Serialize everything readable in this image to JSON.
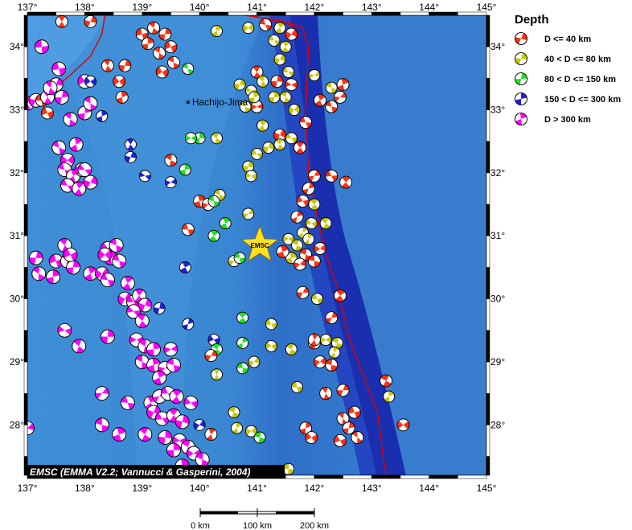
{
  "map": {
    "lon_range": [
      137,
      145
    ],
    "lat_range": [
      27.2,
      34.5
    ],
    "lon_ticks": [
      137,
      138,
      139,
      140,
      141,
      142,
      143,
      144,
      145
    ],
    "lat_ticks": [
      28,
      29,
      30,
      31,
      32,
      33,
      34
    ],
    "lon_labels": [
      "137°",
      "138°",
      "139°",
      "140°",
      "141°",
      "142°",
      "143°",
      "144°",
      "145°"
    ],
    "lat_labels": [
      "28°",
      "29°",
      "30°",
      "31°",
      "32°",
      "33°",
      "34°"
    ],
    "place_label": "Hachijo-Jima",
    "place_lon": 139.8,
    "place_lat": 33.12,
    "epicenter_label": "EMSC",
    "epicenter_lon": 141.05,
    "epicenter_lat": 30.85,
    "credit": "EMSC (EMMA V2.2; Vannucci & Gasperini, 2004)",
    "ocean_color": "#3a8fd8",
    "trench_color": "#1030b0",
    "plate_boundary_color": "#e00000"
  },
  "legend": {
    "title": "Depth",
    "items": [
      {
        "label": "D <= 40 km",
        "color": "#ff3010"
      },
      {
        "label": "40 < D <= 80 km",
        "color": "#c8c800"
      },
      {
        "label": "80 < D <= 150 km",
        "color": "#20e020"
      },
      {
        "label": "150 < D <= 300 km",
        "color": "#2020e0"
      },
      {
        "label": "D > 300 km",
        "color": "#ff00ff"
      }
    ]
  },
  "scale_bar": {
    "labels": [
      "0 km",
      "100 km",
      "200 km"
    ]
  },
  "events": [
    {
      "lon": 137.6,
      "lat": 34.4,
      "d": 0
    },
    {
      "lon": 138.1,
      "lat": 34.4,
      "d": 0
    },
    {
      "lon": 137.25,
      "lat": 34.0,
      "d": 4
    },
    {
      "lon": 138.4,
      "lat": 33.7,
      "d": 0
    },
    {
      "lon": 138.7,
      "lat": 33.7,
      "d": 0
    },
    {
      "lon": 139.0,
      "lat": 34.2,
      "d": 0
    },
    {
      "lon": 139.2,
      "lat": 34.3,
      "d": 0
    },
    {
      "lon": 139.4,
      "lat": 34.2,
      "d": 0
    },
    {
      "lon": 139.5,
      "lat": 34.0,
      "d": 0
    },
    {
      "lon": 139.3,
      "lat": 33.9,
      "d": 0
    },
    {
      "lon": 139.1,
      "lat": 34.05,
      "d": 0
    },
    {
      "lon": 139.35,
      "lat": 33.6,
      "d": 0
    },
    {
      "lon": 139.55,
      "lat": 33.75,
      "d": 0
    },
    {
      "lon": 138.65,
      "lat": 33.2,
      "d": 0
    },
    {
      "lon": 138.6,
      "lat": 33.45,
      "d": 0
    },
    {
      "lon": 139.8,
      "lat": 33.65,
      "d": 2
    },
    {
      "lon": 140.3,
      "lat": 34.25,
      "d": 1
    },
    {
      "lon": 140.85,
      "lat": 34.3,
      "d": 1
    },
    {
      "lon": 141.15,
      "lat": 34.35,
      "d": 0
    },
    {
      "lon": 141.4,
      "lat": 34.3,
      "d": 1
    },
    {
      "lon": 141.6,
      "lat": 34.2,
      "d": 0
    },
    {
      "lon": 141.3,
      "lat": 34.1,
      "d": 1
    },
    {
      "lon": 141.5,
      "lat": 34.0,
      "d": 1
    },
    {
      "lon": 141.4,
      "lat": 33.8,
      "d": 1
    },
    {
      "lon": 141.55,
      "lat": 33.6,
      "d": 1
    },
    {
      "lon": 141.0,
      "lat": 33.6,
      "d": 0
    },
    {
      "lon": 140.7,
      "lat": 33.4,
      "d": 1
    },
    {
      "lon": 140.9,
      "lat": 33.3,
      "d": 1
    },
    {
      "lon": 141.1,
      "lat": 33.45,
      "d": 1
    },
    {
      "lon": 141.35,
      "lat": 33.45,
      "d": 0
    },
    {
      "lon": 141.6,
      "lat": 33.4,
      "d": 0
    },
    {
      "lon": 141.5,
      "lat": 33.2,
      "d": 1
    },
    {
      "lon": 141.3,
      "lat": 33.2,
      "d": 1
    },
    {
      "lon": 141.0,
      "lat": 33.05,
      "d": 0
    },
    {
      "lon": 140.8,
      "lat": 33.05,
      "d": 1
    },
    {
      "lon": 140.95,
      "lat": 33.2,
      "d": 1
    },
    {
      "lon": 142.0,
      "lat": 33.55,
      "d": 1
    },
    {
      "lon": 142.3,
      "lat": 33.35,
      "d": 1
    },
    {
      "lon": 142.5,
      "lat": 33.4,
      "d": 0
    },
    {
      "lon": 142.45,
      "lat": 33.2,
      "d": 0
    },
    {
      "lon": 142.3,
      "lat": 33.05,
      "d": 0
    },
    {
      "lon": 142.1,
      "lat": 33.15,
      "d": 0
    },
    {
      "lon": 141.65,
      "lat": 33.0,
      "d": 1
    },
    {
      "lon": 141.85,
      "lat": 32.8,
      "d": 0
    },
    {
      "lon": 141.1,
      "lat": 32.75,
      "d": 1
    },
    {
      "lon": 141.4,
      "lat": 32.6,
      "d": 0
    },
    {
      "lon": 141.6,
      "lat": 32.55,
      "d": 1
    },
    {
      "lon": 141.75,
      "lat": 32.4,
      "d": 0
    },
    {
      "lon": 141.2,
      "lat": 32.4,
      "d": 1
    },
    {
      "lon": 141.0,
      "lat": 32.3,
      "d": 1
    },
    {
      "lon": 141.4,
      "lat": 32.45,
      "d": 1
    },
    {
      "lon": 140.85,
      "lat": 32.1,
      "d": 1
    },
    {
      "lon": 140.9,
      "lat": 31.95,
      "d": 1
    },
    {
      "lon": 140.3,
      "lat": 32.55,
      "d": 1
    },
    {
      "lon": 140.0,
      "lat": 32.55,
      "d": 2
    },
    {
      "lon": 139.85,
      "lat": 32.55,
      "d": 2
    },
    {
      "lon": 139.5,
      "lat": 32.2,
      "d": 0
    },
    {
      "lon": 139.75,
      "lat": 32.05,
      "d": 2
    },
    {
      "lon": 139.5,
      "lat": 31.85,
      "d": 3
    },
    {
      "lon": 140.35,
      "lat": 31.65,
      "d": 1
    },
    {
      "lon": 140.0,
      "lat": 31.55,
      "d": 0
    },
    {
      "lon": 140.15,
      "lat": 31.5,
      "d": 0
    },
    {
      "lon": 140.25,
      "lat": 31.55,
      "d": 2
    },
    {
      "lon": 140.45,
      "lat": 31.2,
      "d": 2
    },
    {
      "lon": 140.85,
      "lat": 31.35,
      "d": 1
    },
    {
      "lon": 139.8,
      "lat": 31.1,
      "d": 0
    },
    {
      "lon": 140.25,
      "lat": 31.0,
      "d": 2
    },
    {
      "lon": 142.0,
      "lat": 31.95,
      "d": 0
    },
    {
      "lon": 142.3,
      "lat": 31.95,
      "d": 0
    },
    {
      "lon": 142.55,
      "lat": 31.85,
      "d": 0
    },
    {
      "lon": 141.9,
      "lat": 31.75,
      "d": 0
    },
    {
      "lon": 141.8,
      "lat": 31.55,
      "d": 0
    },
    {
      "lon": 142.0,
      "lat": 31.5,
      "d": 1
    },
    {
      "lon": 141.7,
      "lat": 31.3,
      "d": 0
    },
    {
      "lon": 141.95,
      "lat": 31.2,
      "d": 1
    },
    {
      "lon": 142.2,
      "lat": 31.2,
      "d": 1
    },
    {
      "lon": 141.8,
      "lat": 31.05,
      "d": 1
    },
    {
      "lon": 141.55,
      "lat": 30.95,
      "d": 1
    },
    {
      "lon": 141.7,
      "lat": 30.85,
      "d": 1
    },
    {
      "lon": 141.9,
      "lat": 30.95,
      "d": 1
    },
    {
      "lon": 142.1,
      "lat": 30.8,
      "d": 0
    },
    {
      "lon": 141.85,
      "lat": 30.7,
      "d": 0
    },
    {
      "lon": 141.6,
      "lat": 30.65,
      "d": 1
    },
    {
      "lon": 141.75,
      "lat": 30.55,
      "d": 0
    },
    {
      "lon": 142.0,
      "lat": 30.6,
      "d": 0
    },
    {
      "lon": 141.45,
      "lat": 30.75,
      "d": 0
    },
    {
      "lon": 140.6,
      "lat": 30.6,
      "d": 1
    },
    {
      "lon": 140.7,
      "lat": 30.65,
      "d": 2
    },
    {
      "lon": 139.75,
      "lat": 30.5,
      "d": 3
    },
    {
      "lon": 141.8,
      "lat": 30.1,
      "d": 0
    },
    {
      "lon": 142.05,
      "lat": 30.0,
      "d": 1
    },
    {
      "lon": 142.45,
      "lat": 30.05,
      "d": 0
    },
    {
      "lon": 142.3,
      "lat": 29.7,
      "d": 0
    },
    {
      "lon": 141.25,
      "lat": 29.6,
      "d": 1
    },
    {
      "lon": 140.75,
      "lat": 29.7,
      "d": 2
    },
    {
      "lon": 139.8,
      "lat": 29.6,
      "d": 3
    },
    {
      "lon": 140.25,
      "lat": 29.35,
      "d": 3
    },
    {
      "lon": 140.3,
      "lat": 29.2,
      "d": 2
    },
    {
      "lon": 140.75,
      "lat": 29.3,
      "d": 2
    },
    {
      "lon": 141.25,
      "lat": 29.25,
      "d": 1
    },
    {
      "lon": 141.6,
      "lat": 29.2,
      "d": 1
    },
    {
      "lon": 142.0,
      "lat": 29.3,
      "d": 0
    },
    {
      "lon": 142.2,
      "lat": 29.35,
      "d": 1
    },
    {
      "lon": 142.4,
      "lat": 29.3,
      "d": 1
    },
    {
      "lon": 142.35,
      "lat": 29.15,
      "d": 1
    },
    {
      "lon": 142.1,
      "lat": 29.0,
      "d": 0
    },
    {
      "lon": 142.3,
      "lat": 28.95,
      "d": 0
    },
    {
      "lon": 142.0,
      "lat": 29.35,
      "d": 0
    },
    {
      "lon": 140.95,
      "lat": 29.0,
      "d": 1
    },
    {
      "lon": 140.75,
      "lat": 28.9,
      "d": 2
    },
    {
      "lon": 140.3,
      "lat": 28.8,
      "d": 1
    },
    {
      "lon": 140.2,
      "lat": 29.1,
      "d": 0
    },
    {
      "lon": 141.7,
      "lat": 28.6,
      "d": 1
    },
    {
      "lon": 142.2,
      "lat": 28.5,
      "d": 0
    },
    {
      "lon": 142.5,
      "lat": 28.55,
      "d": 0
    },
    {
      "lon": 142.7,
      "lat": 28.2,
      "d": 0
    },
    {
      "lon": 142.5,
      "lat": 28.1,
      "d": 0
    },
    {
      "lon": 142.6,
      "lat": 27.95,
      "d": 0
    },
    {
      "lon": 142.45,
      "lat": 27.75,
      "d": 0
    },
    {
      "lon": 142.75,
      "lat": 27.8,
      "d": 0
    },
    {
      "lon": 141.85,
      "lat": 27.95,
      "d": 0
    },
    {
      "lon": 141.95,
      "lat": 27.8,
      "d": 0
    },
    {
      "lon": 143.25,
      "lat": 28.7,
      "d": 0
    },
    {
      "lon": 143.3,
      "lat": 28.45,
      "d": 1
    },
    {
      "lon": 143.55,
      "lat": 28.0,
      "d": 0
    },
    {
      "lon": 140.6,
      "lat": 28.2,
      "d": 1
    },
    {
      "lon": 140.65,
      "lat": 27.95,
      "d": 1
    },
    {
      "lon": 140.9,
      "lat": 27.9,
      "d": 1
    },
    {
      "lon": 141.05,
      "lat": 27.8,
      "d": 2
    },
    {
      "lon": 140.2,
      "lat": 27.85,
      "d": 0
    },
    {
      "lon": 140.0,
      "lat": 28.0,
      "d": 3
    },
    {
      "lon": 141.55,
      "lat": 27.3,
      "d": 1
    },
    {
      "lon": 137.0,
      "lat": 33.1,
      "d": 4
    },
    {
      "lon": 137.15,
      "lat": 33.15,
      "d": 4
    },
    {
      "lon": 137.25,
      "lat": 33.15,
      "d": 0
    },
    {
      "lon": 137.35,
      "lat": 33.2,
      "d": 4
    },
    {
      "lon": 137.5,
      "lat": 33.4,
      "d": 4
    },
    {
      "lon": 137.55,
      "lat": 33.65,
      "d": 4
    },
    {
      "lon": 137.4,
      "lat": 33.35,
      "d": 4
    },
    {
      "lon": 137.6,
      "lat": 33.2,
      "d": 4
    },
    {
      "lon": 137.35,
      "lat": 32.95,
      "d": 0
    },
    {
      "lon": 137.75,
      "lat": 32.85,
      "d": 4
    },
    {
      "lon": 138.0,
      "lat": 32.95,
      "d": 4
    },
    {
      "lon": 138.0,
      "lat": 33.45,
      "d": 4
    },
    {
      "lon": 138.1,
      "lat": 33.1,
      "d": 4
    },
    {
      "lon": 138.3,
      "lat": 32.9,
      "d": 3
    },
    {
      "lon": 138.1,
      "lat": 33.45,
      "d": 3
    },
    {
      "lon": 137.55,
      "lat": 32.4,
      "d": 4
    },
    {
      "lon": 137.85,
      "lat": 32.45,
      "d": 4
    },
    {
      "lon": 137.7,
      "lat": 32.2,
      "d": 4
    },
    {
      "lon": 137.65,
      "lat": 32.05,
      "d": 4
    },
    {
      "lon": 137.8,
      "lat": 31.95,
      "d": 4
    },
    {
      "lon": 137.95,
      "lat": 32.05,
      "d": 4
    },
    {
      "lon": 137.7,
      "lat": 31.8,
      "d": 4
    },
    {
      "lon": 137.9,
      "lat": 31.75,
      "d": 4
    },
    {
      "lon": 138.1,
      "lat": 31.85,
      "d": 4
    },
    {
      "lon": 138.0,
      "lat": 32.05,
      "d": 4
    },
    {
      "lon": 138.8,
      "lat": 32.45,
      "d": 3
    },
    {
      "lon": 138.8,
      "lat": 32.25,
      "d": 3
    },
    {
      "lon": 139.05,
      "lat": 31.95,
      "d": 3
    },
    {
      "lon": 137.65,
      "lat": 30.85,
      "d": 4
    },
    {
      "lon": 137.15,
      "lat": 30.65,
      "d": 4
    },
    {
      "lon": 137.5,
      "lat": 30.6,
      "d": 4
    },
    {
      "lon": 137.7,
      "lat": 30.6,
      "d": 4
    },
    {
      "lon": 137.8,
      "lat": 30.5,
      "d": 4
    },
    {
      "lon": 137.75,
      "lat": 30.7,
      "d": 4
    },
    {
      "lon": 137.2,
      "lat": 30.4,
      "d": 4
    },
    {
      "lon": 137.45,
      "lat": 30.35,
      "d": 4
    },
    {
      "lon": 138.4,
      "lat": 30.8,
      "d": 4
    },
    {
      "lon": 138.55,
      "lat": 30.85,
      "d": 4
    },
    {
      "lon": 138.45,
      "lat": 30.65,
      "d": 4
    },
    {
      "lon": 138.35,
      "lat": 30.7,
      "d": 4
    },
    {
      "lon": 138.6,
      "lat": 30.6,
      "d": 4
    },
    {
      "lon": 138.1,
      "lat": 30.4,
      "d": 4
    },
    {
      "lon": 138.3,
      "lat": 30.4,
      "d": 4
    },
    {
      "lon": 138.4,
      "lat": 30.3,
      "d": 4
    },
    {
      "lon": 138.75,
      "lat": 30.25,
      "d": 4
    },
    {
      "lon": 138.7,
      "lat": 30.0,
      "d": 4
    },
    {
      "lon": 138.85,
      "lat": 29.95,
      "d": 4
    },
    {
      "lon": 138.95,
      "lat": 30.05,
      "d": 4
    },
    {
      "lon": 139.05,
      "lat": 29.9,
      "d": 4
    },
    {
      "lon": 138.85,
      "lat": 29.8,
      "d": 4
    },
    {
      "lon": 139.0,
      "lat": 29.65,
      "d": 4
    },
    {
      "lon": 139.3,
      "lat": 29.85,
      "d": 3
    },
    {
      "lon": 137.65,
      "lat": 29.5,
      "d": 4
    },
    {
      "lon": 137.9,
      "lat": 29.25,
      "d": 4
    },
    {
      "lon": 138.4,
      "lat": 29.4,
      "d": 4
    },
    {
      "lon": 138.9,
      "lat": 29.35,
      "d": 4
    },
    {
      "lon": 139.05,
      "lat": 29.25,
      "d": 4
    },
    {
      "lon": 139.2,
      "lat": 29.2,
      "d": 4
    },
    {
      "lon": 139.5,
      "lat": 29.2,
      "d": 4
    },
    {
      "lon": 139.0,
      "lat": 29.0,
      "d": 4
    },
    {
      "lon": 139.2,
      "lat": 28.95,
      "d": 4
    },
    {
      "lon": 139.4,
      "lat": 28.9,
      "d": 4
    },
    {
      "lon": 139.55,
      "lat": 28.95,
      "d": 4
    },
    {
      "lon": 139.3,
      "lat": 28.75,
      "d": 4
    },
    {
      "lon": 138.3,
      "lat": 28.5,
      "d": 4
    },
    {
      "lon": 138.75,
      "lat": 28.35,
      "d": 4
    },
    {
      "lon": 139.15,
      "lat": 28.35,
      "d": 4
    },
    {
      "lon": 139.3,
      "lat": 28.45,
      "d": 4
    },
    {
      "lon": 139.45,
      "lat": 28.5,
      "d": 4
    },
    {
      "lon": 139.6,
      "lat": 28.45,
      "d": 4
    },
    {
      "lon": 139.2,
      "lat": 28.2,
      "d": 4
    },
    {
      "lon": 139.35,
      "lat": 28.1,
      "d": 4
    },
    {
      "lon": 139.55,
      "lat": 28.15,
      "d": 4
    },
    {
      "lon": 139.7,
      "lat": 28.05,
      "d": 4
    },
    {
      "lon": 139.85,
      "lat": 28.35,
      "d": 4
    },
    {
      "lon": 139.05,
      "lat": 27.85,
      "d": 4
    },
    {
      "lon": 139.4,
      "lat": 27.8,
      "d": 4
    },
    {
      "lon": 139.65,
      "lat": 27.75,
      "d": 4
    },
    {
      "lon": 139.8,
      "lat": 27.65,
      "d": 4
    },
    {
      "lon": 139.55,
      "lat": 27.6,
      "d": 4
    },
    {
      "lon": 139.9,
      "lat": 27.55,
      "d": 4
    },
    {
      "lon": 140.05,
      "lat": 27.45,
      "d": 4
    },
    {
      "lon": 139.7,
      "lat": 27.35,
      "d": 4
    },
    {
      "lon": 137.0,
      "lat": 27.95,
      "d": 4
    },
    {
      "lon": 138.3,
      "lat": 28.0,
      "d": 4
    },
    {
      "lon": 138.6,
      "lat": 27.85,
      "d": 4
    }
  ]
}
